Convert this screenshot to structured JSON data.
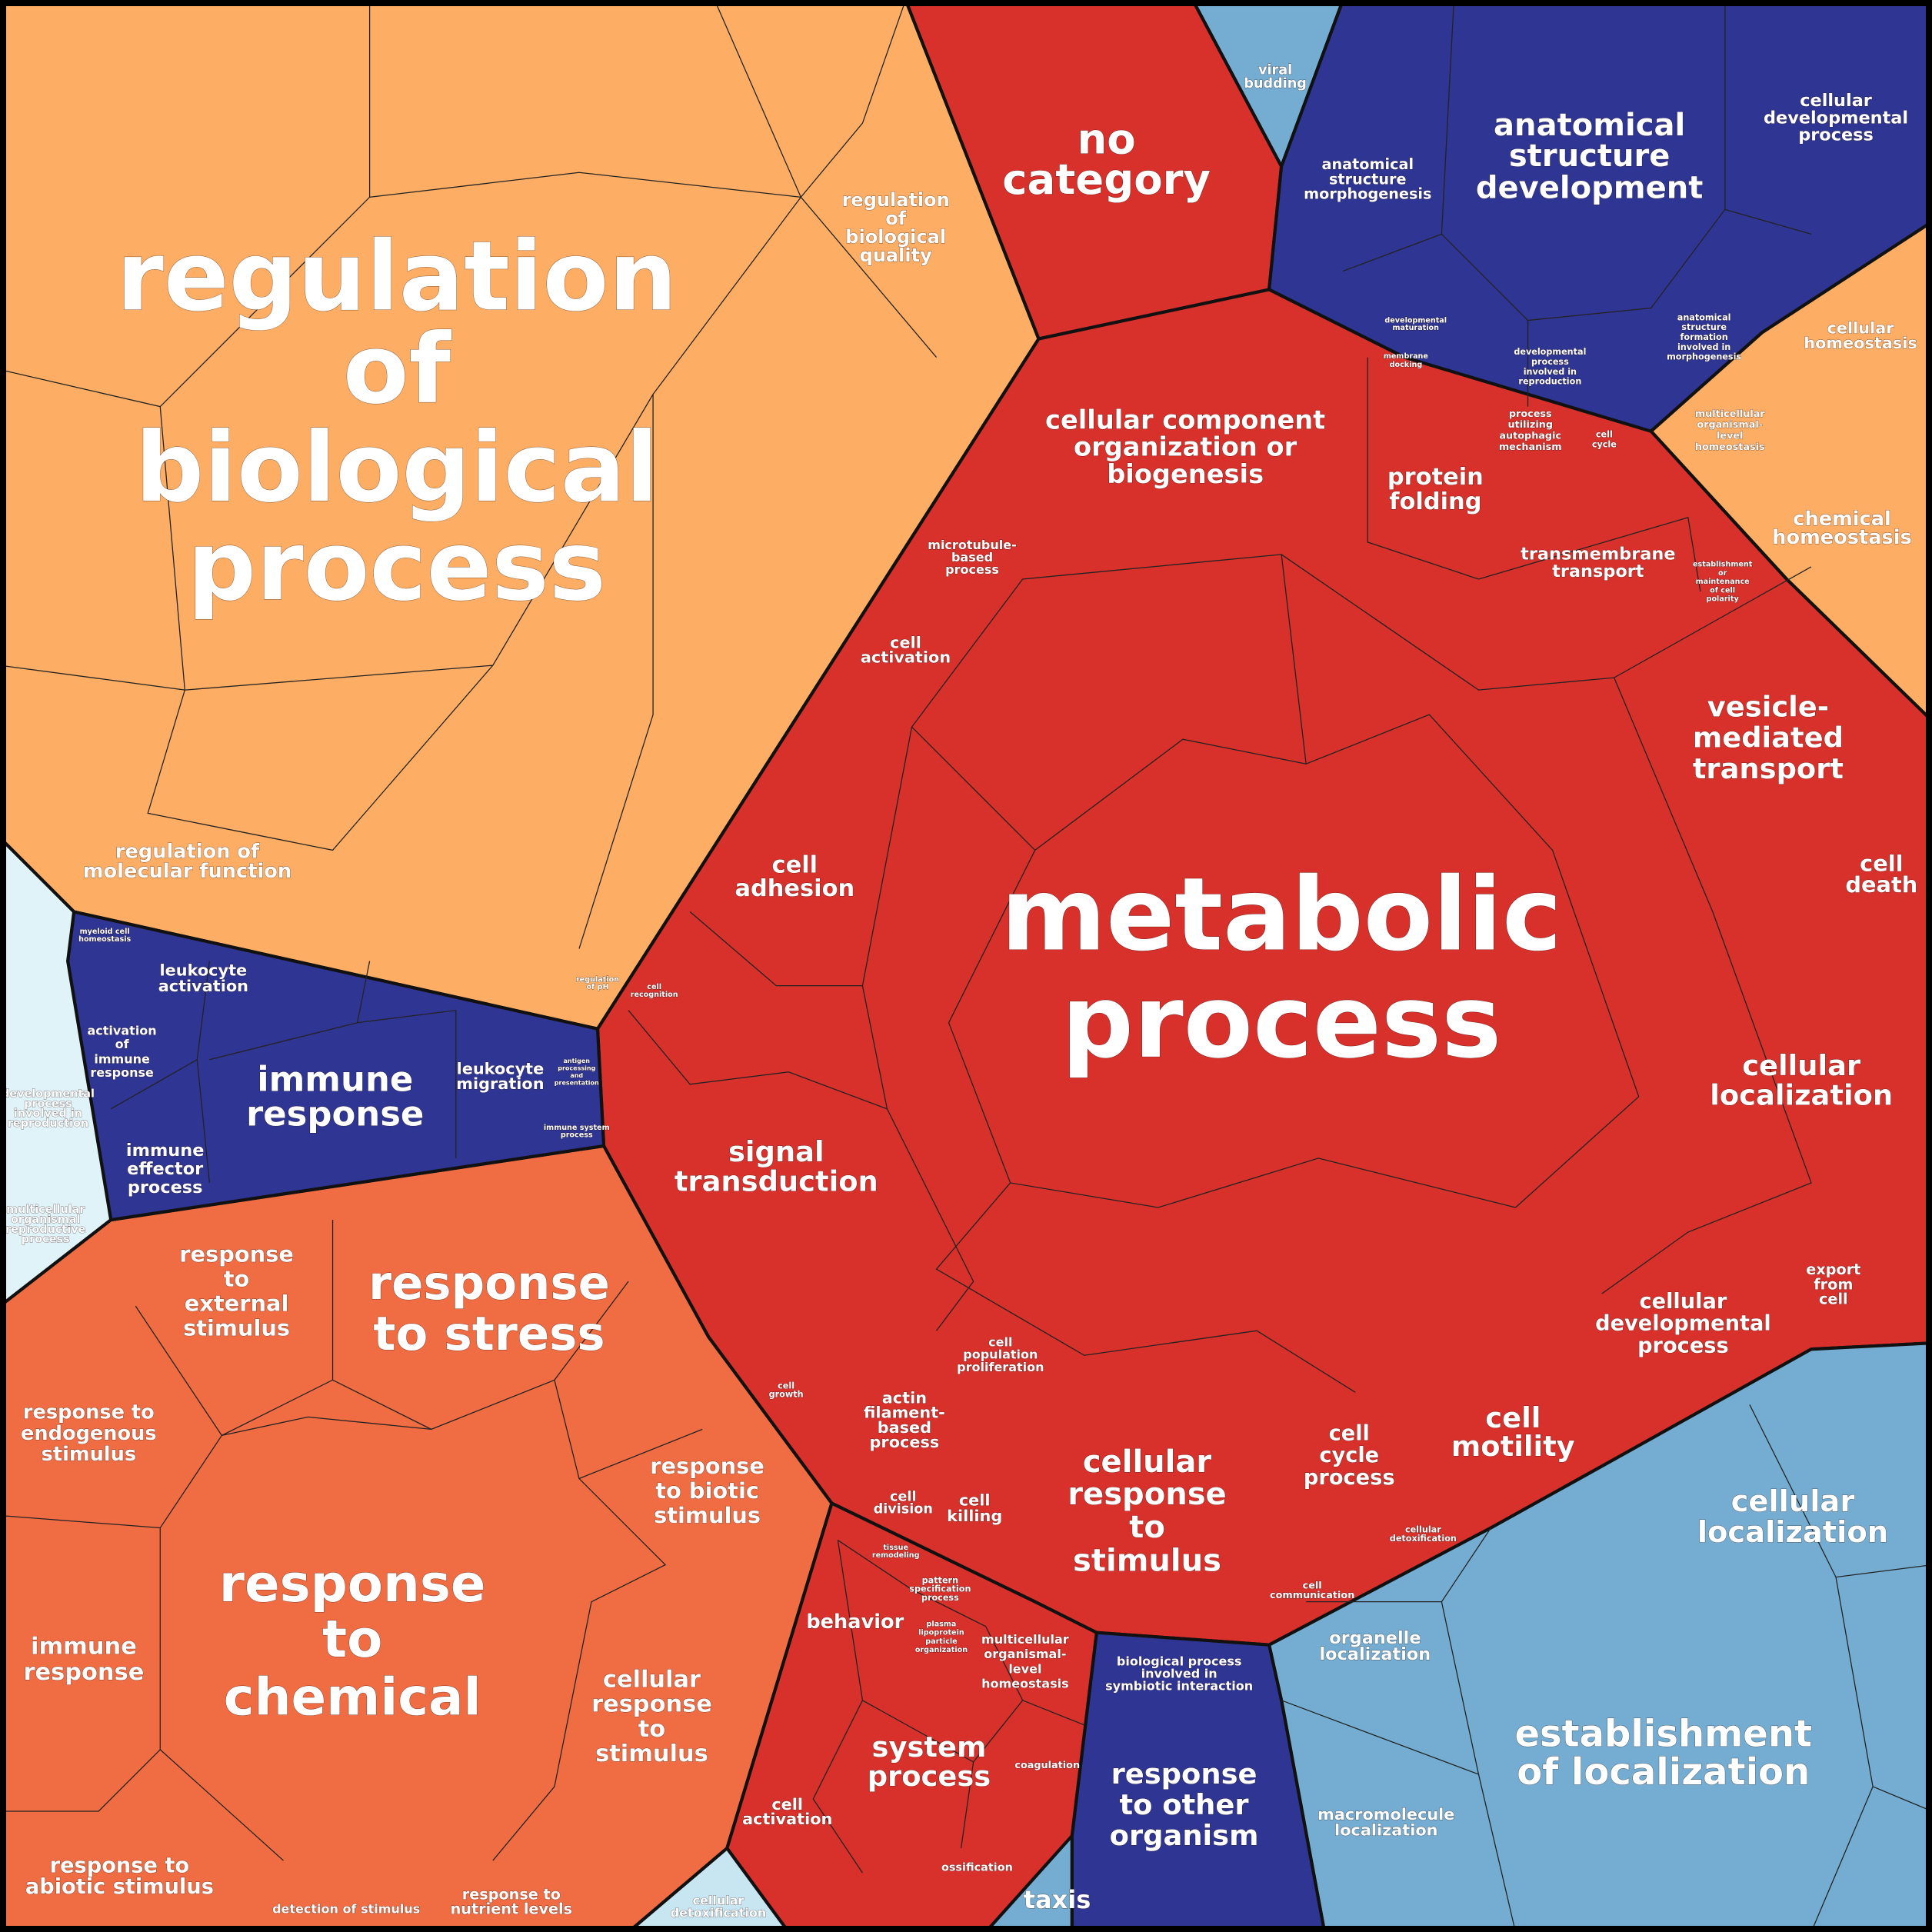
{
  "cells": [
    {
      "lines": [
        "regulation",
        "of",
        "biological",
        "process"
      ]
    },
    {
      "lines": [
        "no",
        "category"
      ]
    },
    {
      "lines": [
        "regulation",
        "of",
        "biological",
        "quality"
      ]
    },
    {
      "lines": [
        "regulation of",
        "molecular function"
      ]
    },
    {
      "lines": [
        "anatomical",
        "structure",
        "development"
      ]
    },
    {
      "lines": [
        "anatomical",
        "structure",
        "morphogenesis"
      ]
    },
    {
      "lines": [
        "cellular",
        "developmental",
        "process"
      ]
    },
    {
      "lines": [
        "viral",
        "budding"
      ]
    },
    {
      "lines": [
        "cellular",
        "homeostasis"
      ]
    },
    {
      "lines": [
        "chemical",
        "homeostasis"
      ]
    },
    {
      "lines": [
        "cellular component",
        "organization or",
        "biogenesis"
      ]
    },
    {
      "lines": [
        "protein",
        "folding"
      ]
    },
    {
      "lines": [
        "transmembrane",
        "transport"
      ]
    },
    {
      "lines": [
        "vesicle-",
        "mediated",
        "transport"
      ]
    },
    {
      "lines": [
        "cell",
        "death"
      ]
    },
    {
      "lines": [
        "metabolic",
        "process"
      ]
    },
    {
      "lines": [
        "microtubule-",
        "based",
        "process"
      ]
    },
    {
      "lines": [
        "cell",
        "activation"
      ]
    },
    {
      "lines": [
        "cell",
        "adhesion"
      ]
    },
    {
      "lines": [
        "signal",
        "transduction"
      ]
    },
    {
      "lines": [
        "cellular",
        "localization"
      ]
    },
    {
      "lines": [
        "export",
        "from",
        "cell"
      ]
    },
    {
      "lines": [
        "cellular",
        "developmental",
        "process"
      ]
    },
    {
      "lines": [
        "cell",
        "motility"
      ]
    },
    {
      "lines": [
        "cell",
        "cycle",
        "process"
      ]
    },
    {
      "lines": [
        "cellular",
        "response",
        "to",
        "stimulus"
      ]
    },
    {
      "lines": [
        "cell",
        "population",
        "proliferation"
      ]
    },
    {
      "lines": [
        "actin",
        "filament-",
        "based",
        "process"
      ]
    },
    {
      "lines": [
        "cell",
        "division"
      ]
    },
    {
      "lines": [
        "cell",
        "killing"
      ]
    },
    {
      "lines": [
        "leukocyte",
        "activation"
      ]
    },
    {
      "lines": [
        "immune",
        "response"
      ]
    },
    {
      "lines": [
        "leukocyte",
        "migration"
      ]
    },
    {
      "lines": [
        "activation",
        "of",
        "immune",
        "response"
      ]
    },
    {
      "lines": [
        "immune",
        "effector",
        "process"
      ]
    },
    {
      "lines": [
        "response",
        "to",
        "external",
        "stimulus"
      ]
    },
    {
      "lines": [
        "response",
        "to stress"
      ]
    },
    {
      "lines": [
        "response to",
        "endogenous",
        "stimulus"
      ]
    },
    {
      "lines": [
        "response",
        "to biotic",
        "stimulus"
      ]
    },
    {
      "lines": [
        "response",
        "to",
        "chemical"
      ]
    },
    {
      "lines": [
        "immune",
        "response"
      ]
    },
    {
      "lines": [
        "cellular",
        "response",
        "to",
        "stimulus"
      ]
    },
    {
      "lines": [
        "response to",
        "abiotic stimulus"
      ]
    },
    {
      "lines": [
        "detection of stimulus"
      ]
    },
    {
      "lines": [
        "response to",
        "nutrient levels"
      ]
    },
    {
      "lines": [
        "cellular",
        "detoxification"
      ]
    },
    {
      "lines": [
        "behavior"
      ]
    },
    {
      "lines": [
        "multicellular",
        "organismal-",
        "level",
        "homeostasis"
      ]
    },
    {
      "lines": [
        "system",
        "process"
      ]
    },
    {
      "lines": [
        "cell",
        "activation"
      ]
    },
    {
      "lines": [
        "coagulation"
      ]
    },
    {
      "lines": [
        "ossification"
      ]
    },
    {
      "lines": [
        "taxis"
      ]
    },
    {
      "lines": [
        "biological process",
        "involved in",
        "symbiotic interaction"
      ]
    },
    {
      "lines": [
        "response",
        "to other",
        "organism"
      ]
    },
    {
      "lines": [
        "organelle",
        "localization"
      ]
    },
    {
      "lines": [
        "macromolecule",
        "localization"
      ]
    },
    {
      "lines": [
        "cellular",
        "localization"
      ]
    },
    {
      "lines": [
        "establishment",
        "of localization"
      ]
    },
    {
      "lines": [
        "cell",
        "communication"
      ]
    },
    {
      "lines": [
        "cellular",
        "detoxification"
      ]
    },
    {
      "lines": [
        "developmental",
        "process",
        "involved in",
        "reproduction"
      ]
    },
    {
      "lines": [
        "multicellular",
        "organismal",
        "reproductive",
        "process"
      ]
    },
    {
      "lines": [
        "cell",
        "growth"
      ]
    },
    {
      "lines": [
        "cell",
        "recognition"
      ]
    },
    {
      "lines": [
        "regulation",
        "of pH"
      ]
    },
    {
      "lines": [
        "membrane",
        "docking"
      ]
    },
    {
      "lines": [
        "developmental",
        "maturation"
      ]
    },
    {
      "lines": [
        "developmental",
        "process",
        "involved in",
        "reproduction"
      ]
    },
    {
      "lines": [
        "anatomical",
        "structure",
        "formation",
        "involved in",
        "morphogenesis"
      ]
    },
    {
      "lines": [
        "process",
        "utilizing",
        "autophagic",
        "mechanism"
      ]
    },
    {
      "lines": [
        "cell",
        "cycle"
      ]
    },
    {
      "lines": [
        "establishment",
        "or",
        "maintenance",
        "of cell",
        "polarity"
      ]
    },
    {
      "lines": [
        "multicellular",
        "organismal-",
        "level",
        "homeostasis"
      ]
    },
    {
      "lines": [
        "myeloid cell",
        "homeostasis"
      ]
    },
    {
      "lines": [
        "immune system",
        "process"
      ]
    },
    {
      "lines": [
        "antigen",
        "processing",
        "and",
        "presentation"
      ]
    },
    {
      "lines": [
        "pattern",
        "specification",
        "process"
      ]
    },
    {
      "lines": [
        "plasma",
        "lipoprotein",
        "particle",
        "organization"
      ]
    },
    {
      "lines": [
        "tissue",
        "remodeling"
      ]
    }
  ]
}
